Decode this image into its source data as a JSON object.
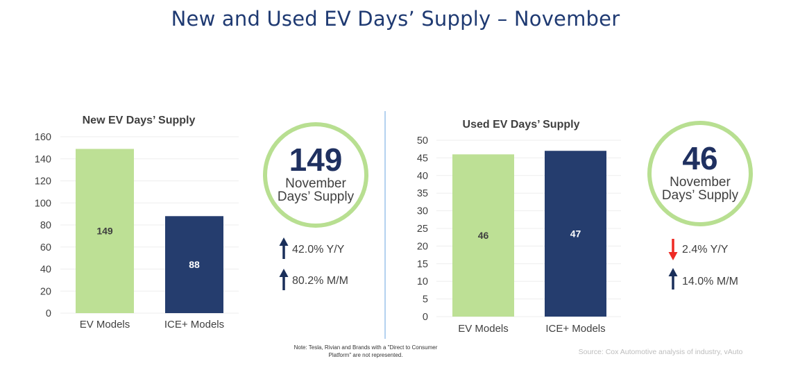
{
  "title": "New and Used EV Days’ Supply – November",
  "colors": {
    "title": "#1f3a72",
    "ev_bar": "#bde095",
    "ice_bar": "#253d6e",
    "ring": "#b8df91",
    "arrow_up": "#1a2f5a",
    "arrow_down": "#ee2a24",
    "divider": "#9cc2ea"
  },
  "chart_data": [
    {
      "type": "bar",
      "title": "New EV Days’ Supply",
      "categories": [
        "EV Models",
        "ICE+ Models"
      ],
      "values": [
        149,
        88
      ],
      "data_labels": [
        "149",
        "88"
      ],
      "ylim": [
        0,
        160
      ],
      "yticks": [
        0,
        20,
        40,
        60,
        80,
        100,
        120,
        140,
        160
      ],
      "xlabel": "",
      "ylabel": "",
      "grid": true,
      "legend": "none"
    },
    {
      "type": "bar",
      "title": "Used EV Days’ Supply",
      "categories": [
        "EV Models",
        "ICE+ Models"
      ],
      "values": [
        46,
        47
      ],
      "data_labels": [
        "46",
        "47"
      ],
      "ylim": [
        0,
        50
      ],
      "yticks": [
        0,
        5,
        10,
        15,
        20,
        25,
        30,
        35,
        40,
        45,
        50
      ],
      "xlabel": "",
      "ylabel": "",
      "grid": true,
      "legend": "none"
    }
  ],
  "kpis": [
    {
      "value": "149",
      "line1": "November",
      "line2": "Days’ Supply",
      "changes": [
        {
          "direction": "up",
          "text": "42.0% Y/Y"
        },
        {
          "direction": "up",
          "text": "80.2% M/M"
        }
      ]
    },
    {
      "value": "46",
      "line1": "November",
      "line2": "Days’ Supply",
      "changes": [
        {
          "direction": "down",
          "text": "2.4% Y/Y"
        },
        {
          "direction": "up",
          "text": "14.0% M/M"
        }
      ]
    }
  ],
  "footer": {
    "note_line1": "Note: Tesla, Rivian and Brands with a \"Direct to Consumer",
    "note_line2": "Platform\" are not represented.",
    "source": "Source: Cox Automotive analysis of industry, vAuto"
  }
}
